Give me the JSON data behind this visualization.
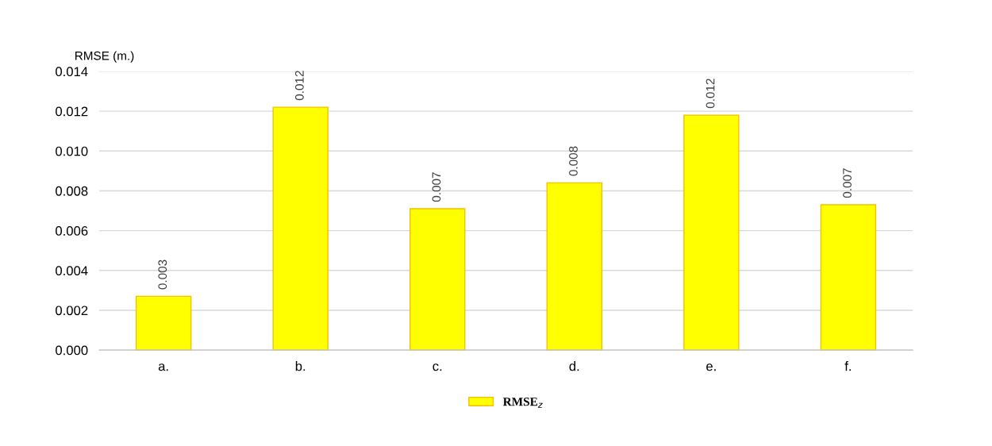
{
  "chart_data": {
    "type": "bar",
    "ylabel": "RMSE (m.)",
    "categories": [
      "a.",
      "b.",
      "c.",
      "d.",
      "e.",
      "f."
    ],
    "series": [
      {
        "name": "RMSE$_{z}$",
        "color": "#ffff00",
        "values": [
          0.0027,
          0.0122,
          0.0071,
          0.0084,
          0.0118,
          0.0073
        ],
        "value_labels": [
          "0.003",
          "0.012",
          "0.007",
          "0.008",
          "0.012",
          "0.007"
        ]
      }
    ],
    "ylim": [
      0,
      0.014
    ],
    "yticks": [
      {
        "value": 0,
        "label": "0.000"
      },
      {
        "value": 0.002,
        "label": "0.002"
      },
      {
        "value": 0.004,
        "label": "0.004"
      },
      {
        "value": 0.006,
        "label": "0.006"
      },
      {
        "value": 0.008,
        "label": "0.008"
      },
      {
        "value": 0.01,
        "label": "0.010"
      },
      {
        "value": 0.012,
        "label": "0.012"
      },
      {
        "value": 0.014,
        "label": "0.014"
      }
    ],
    "grid": "y",
    "legend": "bottom"
  }
}
